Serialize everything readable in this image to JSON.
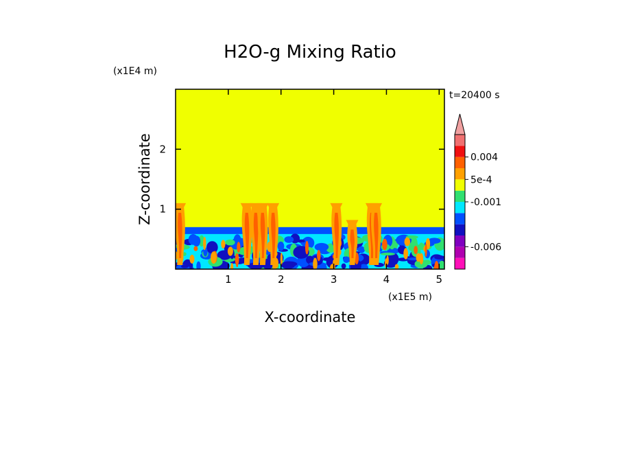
{
  "chart_data": {
    "type": "heatmap",
    "title": "H2O-g Mixing Ratio",
    "time_label": "t=20400 s",
    "xlabel": "X-coordinate",
    "ylabel": "Z-coordinate",
    "x_unit": "(x1E5 m)",
    "y_unit": "(x1E4 m)",
    "xlim": [
      0,
      5.1
    ],
    "ylim": [
      0,
      3
    ],
    "x_ticks": [
      {
        "value": 1,
        "label": "1"
      },
      {
        "value": 2,
        "label": "2"
      },
      {
        "value": 3,
        "label": "3"
      },
      {
        "value": 4,
        "label": "4"
      },
      {
        "value": 5,
        "label": "5"
      }
    ],
    "y_ticks": [
      {
        "value": 1,
        "label": "1"
      },
      {
        "value": 2,
        "label": "2"
      }
    ],
    "colorbar": {
      "extend": "max",
      "top_arrow_color": "#f0a0a0",
      "levels": [
        "#ff10b8",
        "#b000b0",
        "#8000c0",
        "#1010c0",
        "#0050ff",
        "#00e8ff",
        "#30e070",
        "#f0ff00",
        "#ffa000",
        "#ff6000",
        "#f01010",
        "#f07070"
      ],
      "labels": [
        {
          "text": "0.004",
          "level": 10
        },
        {
          "text": "5e-4",
          "level": 8
        },
        {
          "text": "-0.001",
          "level": 6
        },
        {
          "text": "-0.006",
          "level": 2
        }
      ]
    },
    "field": {
      "background_color": "#f0ff00",
      "boundary_layer_top": 0.7,
      "boundary_band_color": "#0050ff",
      "layer_colors": [
        "#00e8ff",
        "#30e070",
        "#0050ff",
        "#1010c0"
      ],
      "plume_colors": [
        "#ffa000",
        "#ff6000"
      ],
      "plume_x": [
        0.08,
        1.35,
        1.52,
        1.65,
        1.85,
        3.05,
        3.35,
        3.72,
        3.8
      ],
      "plume_top": [
        1.1,
        1.1,
        1.1,
        1.1,
        1.1,
        1.1,
        0.82,
        1.1,
        1.1
      ]
    }
  }
}
